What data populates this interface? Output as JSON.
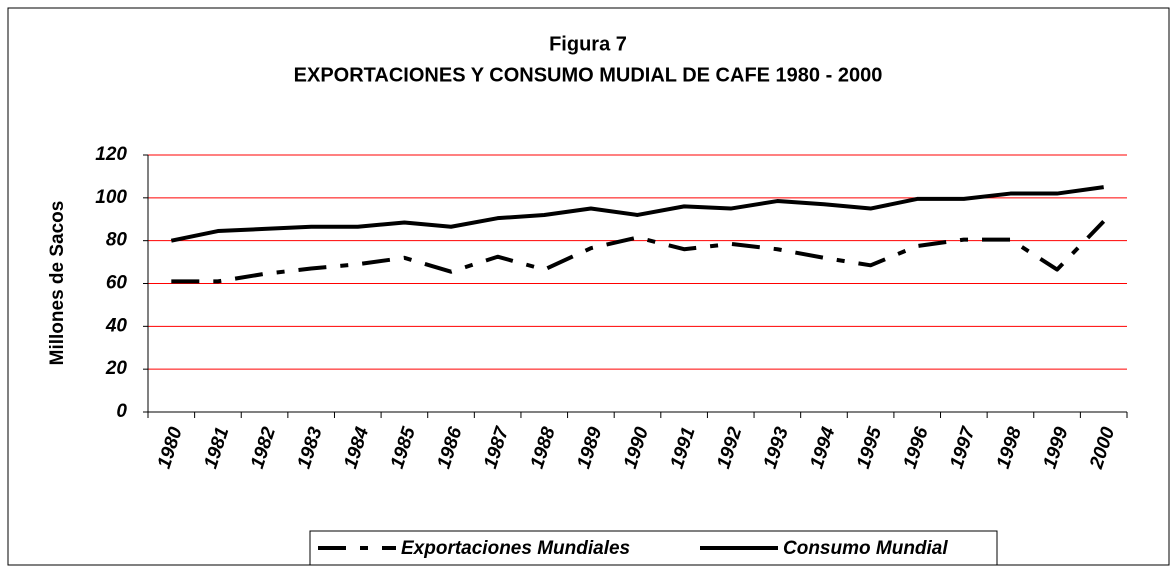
{
  "chart_data": {
    "type": "line",
    "title": "Figura 7",
    "subtitle": "EXPORTACIONES Y CONSUMO MUDIAL DE CAFE 1980 - 2000",
    "y_label": "Millones de Sacos",
    "categories": [
      "1980",
      "1981",
      "1982",
      "1983",
      "1984",
      "1985",
      "1986",
      "1987",
      "1988",
      "1989",
      "1990",
      "1991",
      "1992",
      "1993",
      "1994",
      "1995",
      "1996",
      "1997",
      "1998",
      "1999",
      "2000"
    ],
    "series": [
      {
        "name": "Exportaciones Mundiales",
        "color": "#000000",
        "style": "dashed",
        "values": [
          61,
          61,
          64.5,
          67,
          69,
          72,
          65.5,
          72.5,
          66.5,
          76.5,
          81.5,
          76,
          78.5,
          76,
          72,
          68.5,
          77.5,
          80.5,
          80.5,
          66.5,
          89
        ]
      },
      {
        "name": "Consumo Mundial",
        "color": "#000000",
        "style": "solid",
        "values": [
          80,
          84.5,
          85.5,
          86.5,
          86.5,
          88.5,
          86.5,
          90.5,
          92,
          95,
          92,
          96,
          95,
          98.5,
          97,
          95,
          99.5,
          99.5,
          102,
          102,
          105
        ]
      }
    ],
    "ylim": [
      0,
      120
    ],
    "yticks": [
      0,
      20,
      40,
      60,
      80,
      100,
      120
    ],
    "grid": true,
    "grid_color": "#ff0000",
    "legend": "bottom"
  }
}
